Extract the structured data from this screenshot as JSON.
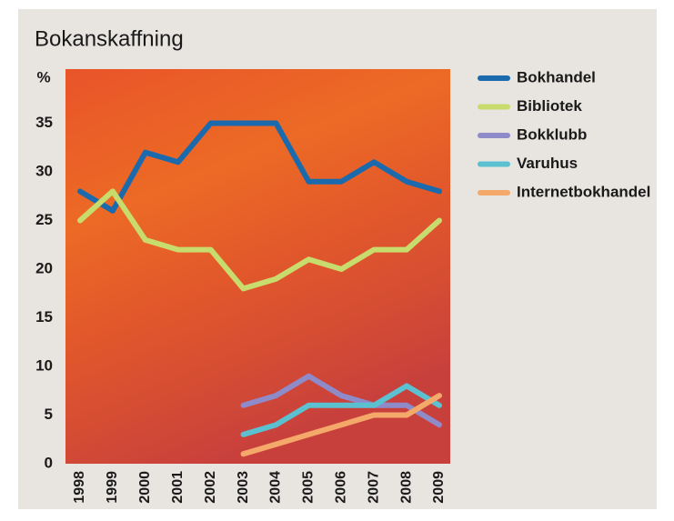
{
  "chart_data": {
    "type": "line",
    "title": "Bokanskaffning",
    "y_label": "%",
    "categories": [
      "1998",
      "1999",
      "2000",
      "2001",
      "2002",
      "2003",
      "2004",
      "2005",
      "2006",
      "2007",
      "2008",
      "2009"
    ],
    "series": [
      {
        "name": "Bokhandel",
        "color": "#1a6aad",
        "values": [
          28,
          26,
          32,
          31,
          35,
          35,
          35,
          29,
          29,
          31,
          29,
          28
        ]
      },
      {
        "name": "Bibliotek",
        "color": "#c8dc6e",
        "values": [
          25,
          28,
          23,
          22,
          22,
          18,
          19,
          21,
          20,
          22,
          22,
          25
        ]
      },
      {
        "name": "Bokklubb",
        "color": "#8f8ac8",
        "values": [
          null,
          null,
          null,
          null,
          null,
          6,
          7,
          9,
          7,
          6,
          6,
          4
        ]
      },
      {
        "name": "Varuhus",
        "color": "#5bc0d0",
        "values": [
          null,
          null,
          null,
          null,
          null,
          3,
          4,
          6,
          6,
          6,
          8,
          6
        ]
      },
      {
        "name": "Internetbokhandel",
        "color": "#f4a96b",
        "values": [
          null,
          null,
          null,
          null,
          null,
          1,
          2,
          3,
          4,
          5,
          5,
          7
        ]
      }
    ],
    "ylim": [
      0,
      40
    ],
    "yticks": [
      0,
      5,
      10,
      15,
      20,
      25,
      30,
      35
    ],
    "legend": "right"
  }
}
